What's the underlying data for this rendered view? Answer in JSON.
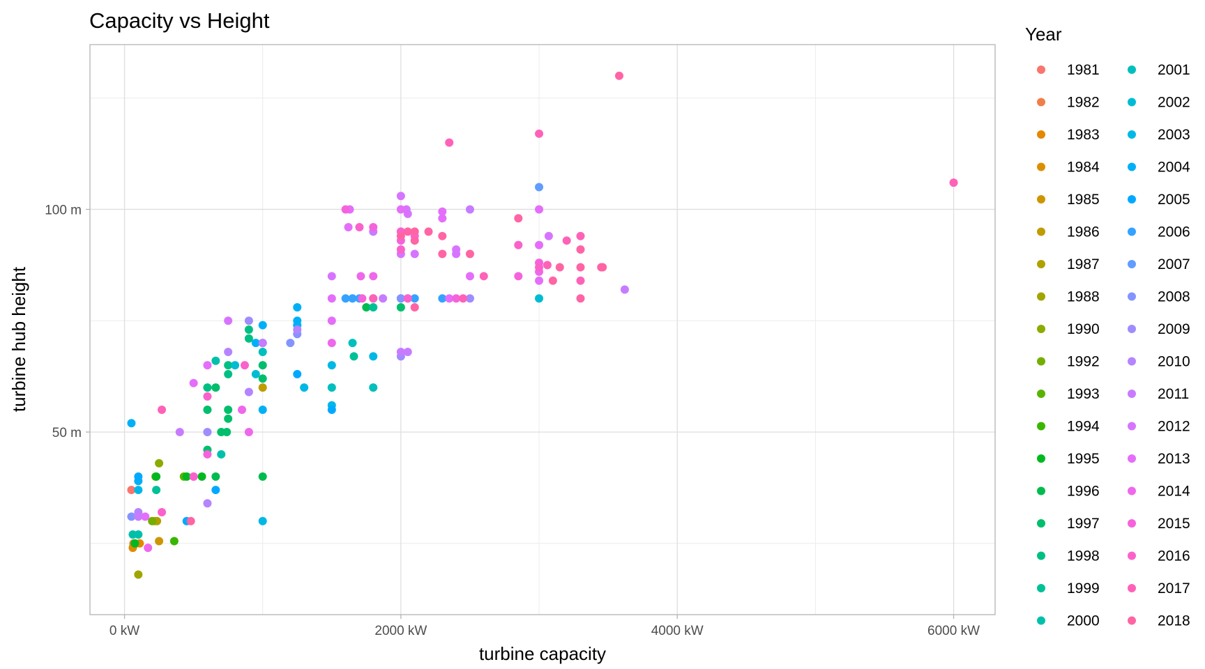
{
  "chart_data": {
    "type": "scatter",
    "title": "Capacity vs Height",
    "xlabel": "turbine capacity",
    "ylabel": "turbine hub height",
    "xlim": [
      -250,
      6300
    ],
    "ylim": [
      9,
      137
    ],
    "x_ticks": [
      {
        "value": 0,
        "label": "0 kW"
      },
      {
        "value": 2000,
        "label": "2000 kW"
      },
      {
        "value": 4000,
        "label": "4000 kW"
      },
      {
        "value": 6000,
        "label": "6000 kW"
      }
    ],
    "x_minor_ticks": [
      1000,
      3000,
      5000
    ],
    "y_ticks": [
      {
        "value": 50,
        "label": "50 m"
      },
      {
        "value": 100,
        "label": "100 m"
      }
    ],
    "y_minor_ticks": [
      25,
      75,
      125
    ],
    "grid": true,
    "legend": {
      "title": "Year",
      "placement": "right",
      "columns": 2
    },
    "series": [
      {
        "name": "1981",
        "color": "#F8766D",
        "points": [
          [
            50,
            37
          ]
        ]
      },
      {
        "name": "1982",
        "color": "#EF7F49",
        "points": [
          [
            65,
            25
          ]
        ]
      },
      {
        "name": "1983",
        "color": "#E58700",
        "points": [
          [
            60,
            24
          ],
          [
            110,
            25
          ]
        ]
      },
      {
        "name": "1984",
        "color": "#DA8F00",
        "points": [
          [
            65,
            24.5
          ]
        ]
      },
      {
        "name": "1985",
        "color": "#CD9600",
        "points": [
          [
            250,
            25.5
          ]
        ]
      },
      {
        "name": "1986",
        "color": "#BF9C00",
        "points": [
          [
            1000,
            60
          ]
        ]
      },
      {
        "name": "1987",
        "color": "#B0A100",
        "points": [
          [
            220,
            30
          ],
          [
            235,
            30
          ]
        ]
      },
      {
        "name": "1988",
        "color": "#9FA600",
        "points": [
          [
            100,
            18
          ]
        ]
      },
      {
        "name": "1990",
        "color": "#8BAB00",
        "points": [
          [
            250,
            43
          ]
        ]
      },
      {
        "name": "1992",
        "color": "#74AE00",
        "points": [
          [
            200,
            30
          ]
        ]
      },
      {
        "name": "1993",
        "color": "#5AB300",
        "points": [
          [
            225,
            40
          ],
          [
            430,
            40
          ]
        ]
      },
      {
        "name": "1994",
        "color": "#39B600",
        "points": [
          [
            360,
            25.5
          ]
        ]
      },
      {
        "name": "1995",
        "color": "#00B81F",
        "points": [
          [
            75,
            25
          ],
          [
            230,
            40
          ],
          [
            450,
            40
          ],
          [
            560,
            40
          ]
        ]
      },
      {
        "name": "1996",
        "color": "#00BB4E",
        "points": [
          [
            660,
            40
          ],
          [
            1000,
            40
          ],
          [
            1750,
            78
          ]
        ]
      },
      {
        "name": "1997",
        "color": "#00BE6C",
        "points": [
          [
            600,
            46
          ],
          [
            600,
            55
          ],
          [
            700,
            50
          ],
          [
            740,
            50
          ],
          [
            750,
            55
          ],
          [
            750,
            53
          ],
          [
            660,
            60
          ],
          [
            1000,
            65
          ],
          [
            1000,
            62
          ],
          [
            2000,
            78
          ]
        ]
      },
      {
        "name": "1998",
        "color": "#00BF83",
        "points": [
          [
            600,
            60
          ],
          [
            750,
            65
          ],
          [
            750,
            63
          ],
          [
            900,
            73
          ],
          [
            900,
            71
          ]
        ]
      },
      {
        "name": "1999",
        "color": "#00C098",
        "points": [
          [
            1660,
            67
          ],
          [
            1800,
            78
          ],
          [
            230,
            37
          ]
        ]
      },
      {
        "name": "2000",
        "color": "#00C0AB",
        "points": [
          [
            60,
            27
          ],
          [
            100,
            27
          ],
          [
            700,
            45
          ],
          [
            660,
            66
          ]
        ]
      },
      {
        "name": "2001",
        "color": "#00BFBC",
        "points": [
          [
            1500,
            60
          ],
          [
            1800,
            60
          ],
          [
            1650,
            70
          ],
          [
            1000,
            68
          ],
          [
            1000,
            70
          ]
        ]
      },
      {
        "name": "2002",
        "color": "#00BCD3",
        "points": [
          [
            3000,
            80
          ],
          [
            950,
            63
          ],
          [
            800,
            65
          ]
        ]
      },
      {
        "name": "2003",
        "color": "#00B8E5",
        "points": [
          [
            1000,
            30
          ],
          [
            1300,
            60
          ],
          [
            1500,
            56
          ],
          [
            1500,
            65
          ],
          [
            1800,
            67
          ],
          [
            100,
            37
          ]
        ]
      },
      {
        "name": "2004",
        "color": "#00B0F6",
        "points": [
          [
            50,
            52
          ],
          [
            1000,
            74
          ],
          [
            1000,
            55
          ],
          [
            950,
            70
          ],
          [
            1250,
            78
          ],
          [
            1250,
            75
          ],
          [
            1250,
            74
          ],
          [
            100,
            39
          ]
        ]
      },
      {
        "name": "2005",
        "color": "#00A9FF",
        "points": [
          [
            1500,
            55
          ],
          [
            1250,
            63
          ],
          [
            660,
            37
          ],
          [
            450,
            30
          ],
          [
            100,
            40
          ]
        ]
      },
      {
        "name": "2006",
        "color": "#35A2FF",
        "points": [
          [
            1600,
            80
          ],
          [
            1650,
            80
          ],
          [
            1700,
            80
          ],
          [
            2100,
            80
          ],
          [
            2300,
            80
          ]
        ]
      },
      {
        "name": "2007",
        "color": "#619CFF",
        "points": [
          [
            3000,
            105
          ],
          [
            1800,
            80
          ],
          [
            2000,
            80
          ]
        ]
      },
      {
        "name": "2008",
        "color": "#8494FF",
        "points": [
          [
            50,
            31
          ],
          [
            1250,
            72
          ],
          [
            2000,
            80
          ],
          [
            1200,
            70
          ]
        ]
      },
      {
        "name": "2009",
        "color": "#9F8CFF",
        "points": [
          [
            2000,
            67
          ],
          [
            2050,
            80
          ],
          [
            900,
            75
          ],
          [
            600,
            50
          ],
          [
            2500,
            80
          ]
        ]
      },
      {
        "name": "2010",
        "color": "#B584FF",
        "points": [
          [
            600,
            34
          ],
          [
            750,
            68
          ],
          [
            900,
            59
          ],
          [
            100,
            32
          ],
          [
            500,
            40
          ],
          [
            1250,
            73
          ]
        ]
      },
      {
        "name": "2011",
        "color": "#C77CFF",
        "points": [
          [
            400,
            50
          ],
          [
            100,
            31
          ],
          [
            1000,
            70
          ],
          [
            2000,
            68
          ],
          [
            2050,
            68
          ],
          [
            1800,
            95
          ],
          [
            2500,
            100
          ],
          [
            3620,
            82
          ],
          [
            1870,
            80
          ]
        ]
      },
      {
        "name": "2012",
        "color": "#D774FF",
        "points": [
          [
            750,
            75
          ],
          [
            1500,
            85
          ],
          [
            2000,
            90
          ],
          [
            2100,
            90
          ],
          [
            2400,
            91
          ],
          [
            2400,
            90
          ],
          [
            3070,
            94
          ],
          [
            2000,
            103
          ],
          [
            2040,
            100
          ],
          [
            2050,
            99
          ]
        ]
      },
      {
        "name": "2013",
        "color": "#E46EFA",
        "points": [
          [
            150,
            31
          ],
          [
            600,
            65
          ],
          [
            500,
            61
          ],
          [
            1500,
            75
          ],
          [
            1620,
            96
          ],
          [
            1630,
            100
          ],
          [
            2000,
            100
          ],
          [
            2300,
            99.5
          ],
          [
            2300,
            98
          ],
          [
            2500,
            85
          ],
          [
            3000,
            92
          ],
          [
            3000,
            84
          ],
          [
            3000,
            100
          ],
          [
            2350,
            80
          ],
          [
            1500,
            80
          ]
        ]
      },
      {
        "name": "2014",
        "color": "#EE68EB",
        "points": [
          [
            170,
            24
          ],
          [
            850,
            55
          ],
          [
            900,
            50
          ],
          [
            1500,
            70
          ],
          [
            1800,
            85
          ],
          [
            1710,
            85
          ],
          [
            2000,
            95
          ],
          [
            3000,
            86
          ]
        ]
      },
      {
        "name": "2015",
        "color": "#F563DC",
        "points": [
          [
            600,
            45
          ],
          [
            1600,
            100
          ],
          [
            1720,
            80
          ],
          [
            1800,
            96
          ],
          [
            2000,
            93
          ],
          [
            2100,
            94
          ],
          [
            2850,
            85
          ],
          [
            3000,
            88
          ],
          [
            2400,
            80
          ]
        ]
      },
      {
        "name": "2016",
        "color": "#FA62CB",
        "points": [
          [
            270,
            32
          ],
          [
            500,
            40
          ],
          [
            600,
            58
          ],
          [
            870,
            65
          ],
          [
            1700,
            96
          ],
          [
            2000,
            95
          ],
          [
            2000,
            91
          ],
          [
            2050,
            80
          ],
          [
            2850,
            92
          ],
          [
            3000,
            87
          ]
        ]
      },
      {
        "name": "2017",
        "color": "#FE62B8",
        "points": [
          [
            270,
            55
          ],
          [
            3000,
            117
          ],
          [
            6000,
            106
          ],
          [
            2350,
            115
          ],
          [
            3200,
            93
          ],
          [
            3300,
            94
          ],
          [
            3300,
            84
          ],
          [
            2450,
            80
          ],
          [
            2600,
            85
          ],
          [
            1800,
            80
          ],
          [
            3060,
            87.5
          ]
        ]
      },
      {
        "name": "2018",
        "color": "#FF64A4",
        "points": [
          [
            3580,
            130
          ],
          [
            480,
            30
          ],
          [
            2000,
            94
          ],
          [
            2050,
            95
          ],
          [
            2100,
            95
          ],
          [
            2200,
            95
          ],
          [
            2300,
            94
          ],
          [
            2500,
            90
          ],
          [
            2850,
            98
          ],
          [
            3100,
            84
          ],
          [
            3150,
            87
          ],
          [
            3300,
            91
          ],
          [
            3300,
            87
          ],
          [
            3300,
            80
          ],
          [
            3450,
            87
          ],
          [
            2300,
            90
          ],
          [
            2100,
            93
          ],
          [
            3460,
            87
          ],
          [
            2100,
            78
          ]
        ]
      }
    ]
  }
}
